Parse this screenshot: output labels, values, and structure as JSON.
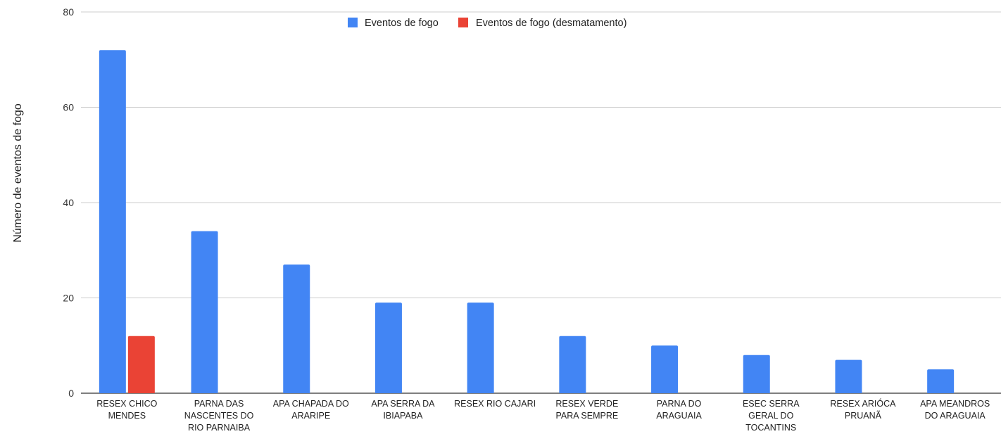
{
  "chart_data": {
    "type": "bar",
    "ylabel": "Número de eventos de fogo",
    "xlabel": "",
    "ylim": [
      0,
      80
    ],
    "yticks": [
      0,
      20,
      40,
      60,
      80
    ],
    "grid": true,
    "legend_position": "top-center",
    "categories": [
      [
        "RESEX CHICO",
        "MENDES"
      ],
      [
        "PARNA DAS",
        "NASCENTES DO",
        "RIO PARNAIBA"
      ],
      [
        "APA CHAPADA DO",
        "ARARIPE"
      ],
      [
        "APA SERRA DA",
        "IBIAPABA"
      ],
      [
        "RESEX RIO CAJARI"
      ],
      [
        "RESEX VERDE",
        "PARA SEMPRE"
      ],
      [
        "PARNA DO",
        "ARAGUAIA"
      ],
      [
        "ESEC SERRA",
        "GERAL DO",
        "TOCANTINS"
      ],
      [
        "RESEX ARIÓCA",
        "PRUANÃ"
      ],
      [
        "APA MEANDROS",
        "DO ARAGUAIA"
      ]
    ],
    "series": [
      {
        "name": "Eventos de fogo",
        "color": "#4285F4",
        "values": [
          72,
          34,
          27,
          19,
          19,
          12,
          10,
          8,
          7,
          5
        ]
      },
      {
        "name": "Eventos de fogo (desmatamento)",
        "color": "#EA4335",
        "values": [
          12,
          0,
          0,
          0,
          0,
          0,
          0,
          0,
          0,
          0
        ]
      }
    ]
  }
}
